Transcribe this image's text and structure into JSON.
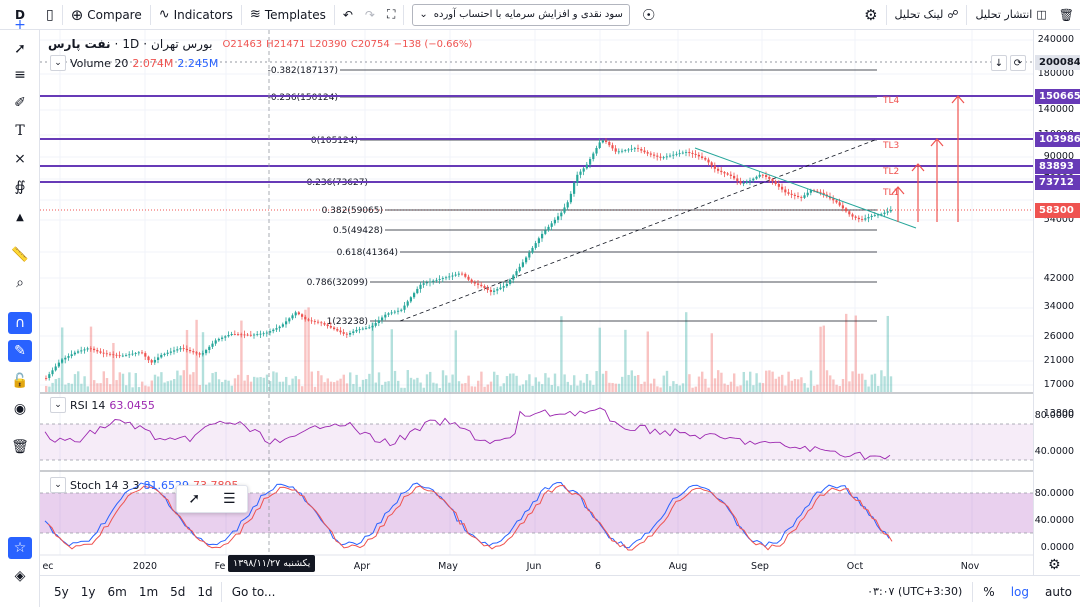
{
  "toolbar": {
    "interval": "D",
    "compare_label": "Compare",
    "indicators_label": "Indicators",
    "templates_label": "Templates",
    "strategy_select": "سود نقدی و افزایش سرمایه با احتساب آورده",
    "link_label": "لینک تحلیل",
    "publish_label": "انتشار تحلیل"
  },
  "symbol": {
    "name": "نفت پارس",
    "exchange": "بورس تهران",
    "interval": "1D",
    "open": "O21463",
    "high": "H21471",
    "low": "L20390",
    "close": "C20754",
    "change": "−138 (−0.66%)"
  },
  "volume_legend": {
    "name": "Volume 20",
    "v1": "2.074M",
    "v2": "2.245M"
  },
  "rsi_legend": {
    "name": "RSI 14",
    "value": "63.0455"
  },
  "stoch_legend": {
    "name": "Stoch 14 3 3",
    "v1": "81.6529",
    "v2": "73.7895"
  },
  "price_axis": [
    "240000",
    "180000",
    "140000",
    "110000",
    "90000",
    "70000",
    "54000",
    "42000",
    "34000",
    "26000",
    "21000",
    "17000",
    "13800"
  ],
  "rsi_axis": [
    "80.0000",
    "40.0000"
  ],
  "stoch_axis": [
    "80.0000",
    "40.0000",
    "0.0000"
  ],
  "price_tags": [
    {
      "value": "200084",
      "color": "#e0e3eb",
      "text_color": "#131722"
    },
    {
      "value": "150665",
      "color": "#673ab7",
      "text_color": "#ffffff"
    },
    {
      "value": "103986",
      "color": "#673ab7",
      "text_color": "#ffffff"
    },
    {
      "value": "83893",
      "color": "#673ab7",
      "text_color": "#ffffff"
    },
    {
      "value": "73712",
      "color": "#673ab7",
      "text_color": "#ffffff"
    },
    {
      "value": "58300",
      "color": "#ef5350",
      "text_color": "#ffffff"
    }
  ],
  "fib_levels": [
    "-0.382(187137)",
    "-0.236(150124)",
    "0(105124)",
    "0.236(73627)",
    "0.382(59065)",
    "0.5(49428)",
    "0.618(41364)",
    "0.786(32099)",
    "1(23238)"
  ],
  "targets": [
    "TL4",
    "TL3",
    "TL2",
    "TL1"
  ],
  "time_axis": [
    "ec",
    "2020",
    "Fe",
    "Apr",
    "May",
    "Jun",
    "6",
    "Aug",
    "Sep",
    "Oct",
    "Nov"
  ],
  "crosshair_date": "یکشنبه ۱۳۹۸/۱۱/۲۷",
  "bottombar": {
    "ranges": [
      "5y",
      "1y",
      "6m",
      "1m",
      "5d",
      "1d"
    ],
    "goto": "Go to...",
    "clock": "۰۳:۰۷ (UTC+3:30)",
    "percent": "%",
    "log": "log",
    "auto": "auto"
  },
  "colors": {
    "up": "#26a69a",
    "down": "#ef5350",
    "fib": "#673ab7",
    "accent": "#2962ff"
  }
}
